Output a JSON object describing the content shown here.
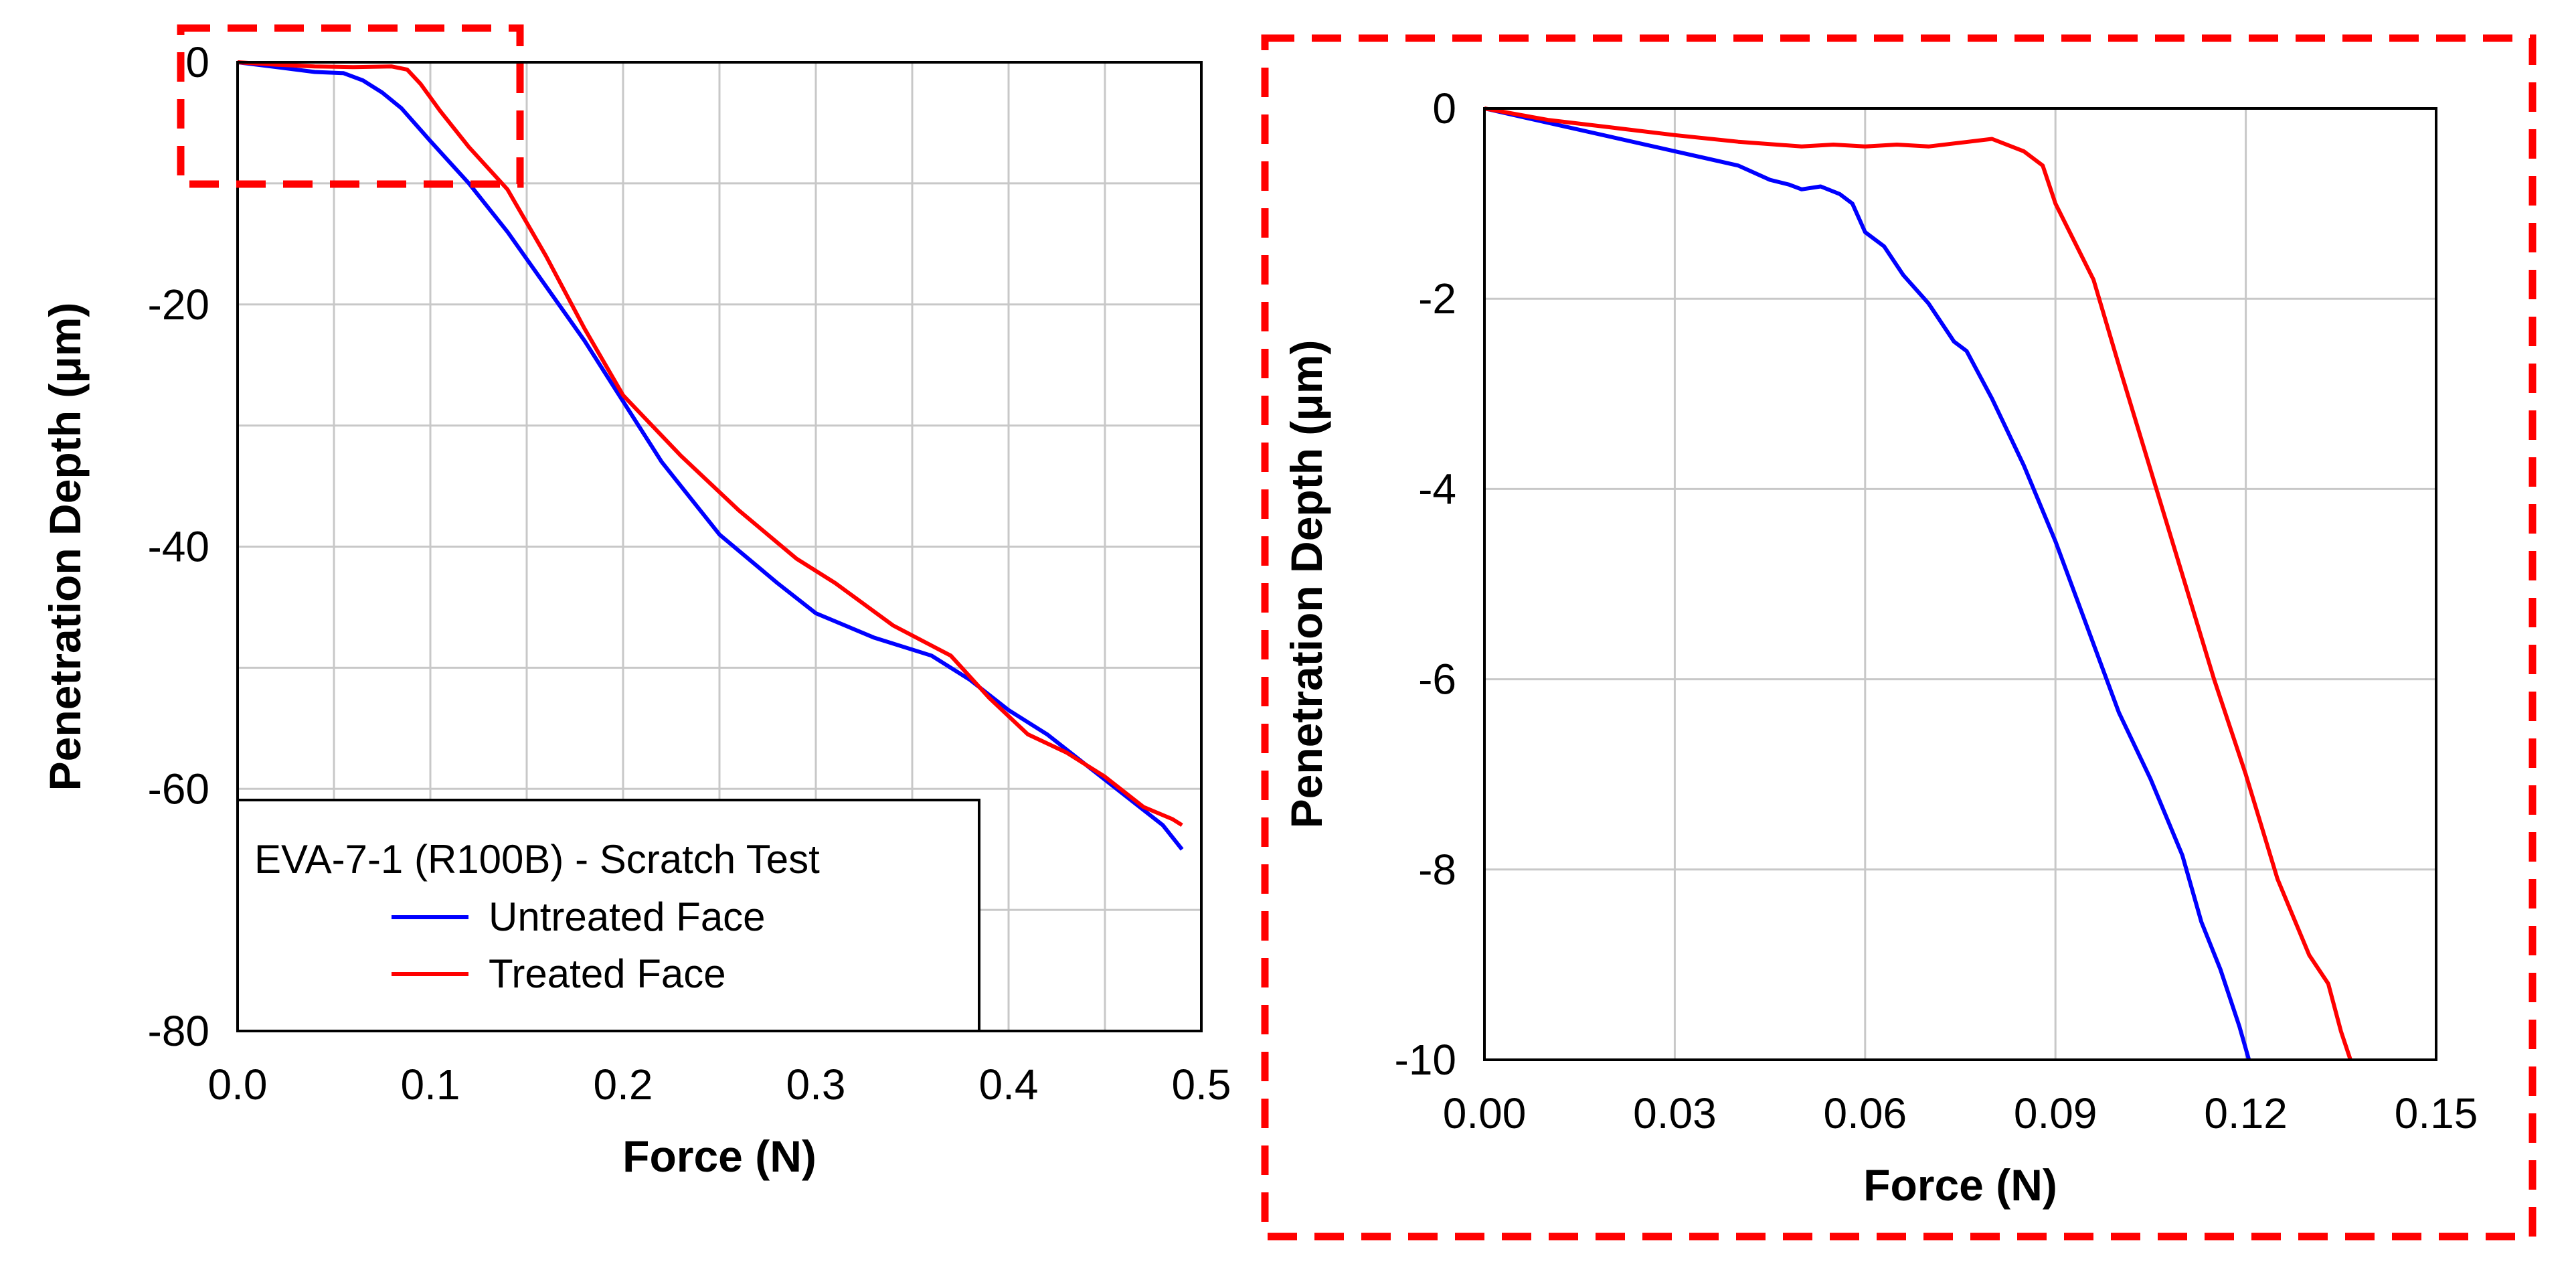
{
  "chart_data": [
    {
      "type": "line",
      "title": "EVA-7-1 (R100B) - Scratch Test",
      "xlabel": "Force (N)",
      "ylabel": "Penetration Depth (μm)",
      "xlim": [
        0,
        0.5
      ],
      "ylim": [
        -80,
        0
      ],
      "x_ticks": [
        "0.0",
        "0.1",
        "0.2",
        "0.3",
        "0.4",
        "0.5"
      ],
      "y_ticks": [
        "0",
        "-20",
        "-40",
        "-60",
        "-80"
      ],
      "grid": true,
      "legend": {
        "title": "EVA-7-1 (R100B) - Scratch Test",
        "placement": "bottom-left",
        "entries": [
          "Untreated Face",
          "Treated Face"
        ]
      },
      "series": [
        {
          "name": "Untreated Face",
          "color": "#0000ff",
          "x": [
            0,
            0.02,
            0.04,
            0.055,
            0.065,
            0.075,
            0.085,
            0.1,
            0.12,
            0.14,
            0.16,
            0.18,
            0.2,
            0.22,
            0.25,
            0.28,
            0.3,
            0.33,
            0.36,
            0.38,
            0.4,
            0.42,
            0.44,
            0.46,
            0.48,
            0.49
          ],
          "y": [
            0,
            -0.4,
            -0.8,
            -0.9,
            -1.5,
            -2.5,
            -3.8,
            -6.5,
            -10,
            -14,
            -18.5,
            -23,
            -28,
            -33,
            -39,
            -43,
            -45.5,
            -47.5,
            -49,
            -51,
            -53.5,
            -55.5,
            -58,
            -60.5,
            -63,
            -65
          ]
        },
        {
          "name": "Treated Face",
          "color": "#ff0000",
          "x": [
            0,
            0.02,
            0.04,
            0.06,
            0.08,
            0.088,
            0.095,
            0.105,
            0.12,
            0.14,
            0.16,
            0.18,
            0.2,
            0.23,
            0.26,
            0.29,
            0.31,
            0.34,
            0.37,
            0.39,
            0.41,
            0.43,
            0.45,
            0.47,
            0.485,
            0.49
          ],
          "y": [
            0,
            -0.2,
            -0.35,
            -0.4,
            -0.35,
            -0.6,
            -1.8,
            -4,
            -7,
            -10.5,
            -16,
            -22,
            -27.5,
            -32.5,
            -37,
            -41,
            -43,
            -46.5,
            -49,
            -52.5,
            -55.5,
            -57,
            -59,
            -61.5,
            -62.5,
            -63
          ]
        }
      ],
      "annotation": "red dashed box marking zoom region Force 0-0.15 N, Depth 0 to -10 μm"
    },
    {
      "type": "line",
      "title": "",
      "xlabel": "Force (N)",
      "ylabel": "Penetration Depth (μm)",
      "xlim": [
        0,
        0.15
      ],
      "ylim": [
        -10,
        0
      ],
      "x_ticks": [
        "0.00",
        "0.03",
        "0.06",
        "0.09",
        "0.12",
        "0.15"
      ],
      "y_ticks": [
        "0",
        "-2",
        "-4",
        "-6",
        "-8",
        "-10"
      ],
      "grid": true,
      "series": [
        {
          "name": "Untreated Face",
          "color": "#0000ff",
          "x": [
            0,
            0.01,
            0.02,
            0.03,
            0.04,
            0.045,
            0.048,
            0.05,
            0.053,
            0.056,
            0.058,
            0.06,
            0.063,
            0.066,
            0.07,
            0.074,
            0.076,
            0.08,
            0.085,
            0.09,
            0.095,
            0.1,
            0.105,
            0.11,
            0.113,
            0.116,
            0.119,
            0.1205
          ],
          "y": [
            0,
            -0.15,
            -0.3,
            -0.45,
            -0.6,
            -0.75,
            -0.8,
            -0.85,
            -0.82,
            -0.9,
            -1.0,
            -1.3,
            -1.45,
            -1.75,
            -2.05,
            -2.45,
            -2.55,
            -3.05,
            -3.75,
            -4.55,
            -5.45,
            -6.35,
            -7.05,
            -7.85,
            -8.55,
            -9.05,
            -9.65,
            -10
          ]
        },
        {
          "name": "Treated Face",
          "color": "#ff0000",
          "x": [
            0,
            0.01,
            0.02,
            0.03,
            0.04,
            0.05,
            0.055,
            0.06,
            0.065,
            0.07,
            0.075,
            0.08,
            0.085,
            0.088,
            0.09,
            0.093,
            0.096,
            0.1,
            0.105,
            0.11,
            0.115,
            0.12,
            0.125,
            0.13,
            0.133,
            0.135,
            0.1365
          ],
          "y": [
            0,
            -0.12,
            -0.2,
            -0.28,
            -0.35,
            -0.4,
            -0.38,
            -0.4,
            -0.38,
            -0.4,
            -0.36,
            -0.32,
            -0.45,
            -0.6,
            -1.0,
            -1.4,
            -1.8,
            -2.7,
            -3.8,
            -4.9,
            -6.0,
            -7.0,
            -8.1,
            -8.9,
            -9.2,
            -9.7,
            -10
          ]
        }
      ]
    }
  ]
}
